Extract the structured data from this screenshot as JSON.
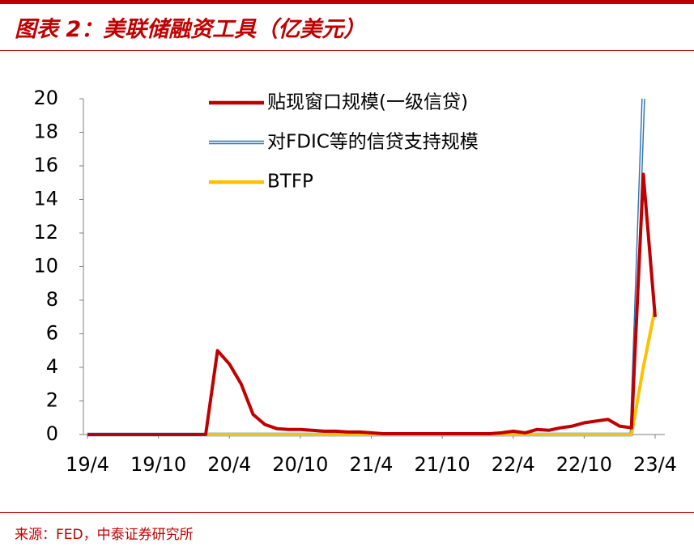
{
  "title": "图表 2：美联储融资工具（亿美元）",
  "source": "来源：FED，中泰证券研究所",
  "chart_data": {
    "type": "line",
    "categories": [
      "19/4",
      null,
      null,
      null,
      null,
      null,
      "19/10",
      null,
      null,
      null,
      null,
      null,
      "20/4",
      null,
      null,
      null,
      null,
      null,
      "20/10",
      null,
      null,
      null,
      null,
      null,
      "21/4",
      null,
      null,
      null,
      null,
      null,
      "21/10",
      null,
      null,
      null,
      null,
      null,
      "22/4",
      null,
      null,
      null,
      null,
      null,
      "22/10",
      null,
      null,
      null,
      null,
      null,
      "23/4"
    ],
    "ylim": [
      0,
      20
    ],
    "yticks": [
      0,
      2,
      4,
      6,
      8,
      10,
      12,
      14,
      16,
      18,
      20
    ],
    "legend": "upper center",
    "series": [
      {
        "name": "贴现窗口规模(一级信贷)",
        "color": "#c00000",
        "style": "solid",
        "values": [
          0,
          0,
          0,
          0,
          0,
          0,
          0,
          0,
          0,
          0,
          0,
          5.0,
          4.2,
          3.0,
          1.2,
          0.6,
          0.35,
          0.3,
          0.3,
          0.25,
          0.2,
          0.2,
          0.15,
          0.15,
          0.1,
          0.05,
          0.05,
          0.05,
          0.05,
          0.05,
          0.05,
          0.05,
          0.05,
          0.05,
          0.05,
          0.1,
          0.2,
          0.1,
          0.3,
          0.25,
          0.4,
          0.5,
          0.7,
          0.8,
          0.9,
          0.5,
          0.4,
          15.5,
          7.0
        ]
      },
      {
        "name": "对FDIC等的信贷支持规模",
        "color": "#2e75b6",
        "style": "double",
        "values": [
          0,
          0,
          0,
          0,
          0,
          0,
          0,
          0,
          0,
          0,
          0,
          0,
          0,
          0,
          0,
          0,
          0,
          0,
          0,
          0,
          0,
          0,
          0,
          0,
          0,
          0,
          0,
          0,
          0,
          0,
          0,
          0,
          0,
          0,
          0,
          0,
          0,
          0,
          0,
          0,
          0,
          0,
          0,
          0,
          0,
          0,
          0,
          20,
          null
        ]
      },
      {
        "name": "BTFP",
        "color": "#ffc000",
        "style": "solid",
        "values": [
          0,
          0,
          0,
          0,
          0,
          0,
          0,
          0,
          0,
          0,
          0,
          0,
          0,
          0,
          0,
          0,
          0,
          0,
          0,
          0,
          0,
          0,
          0,
          0,
          0,
          0,
          0,
          0,
          0,
          0,
          0,
          0,
          0,
          0,
          0,
          0,
          0,
          0,
          0,
          0,
          0,
          0,
          0,
          0,
          0,
          0,
          0,
          4.0,
          7.5
        ]
      }
    ]
  }
}
